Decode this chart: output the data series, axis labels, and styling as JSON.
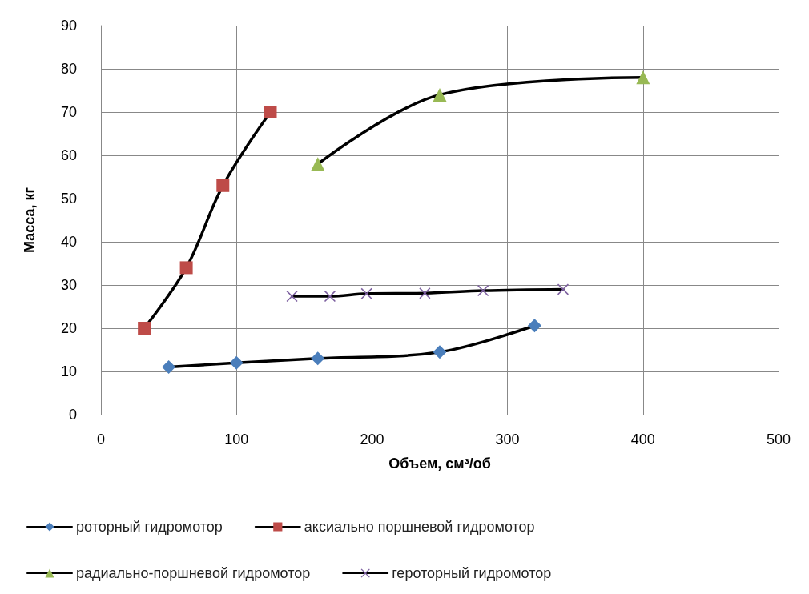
{
  "chart_data": {
    "type": "line",
    "xlabel": "Объем, см³/об",
    "ylabel": "Масса, кг",
    "xlim": [
      0,
      500
    ],
    "xticks": [
      0,
      100,
      200,
      300,
      400,
      500
    ],
    "ylim": [
      0,
      90
    ],
    "yticks": [
      0,
      10,
      20,
      30,
      40,
      50,
      60,
      70,
      80,
      90
    ],
    "grid": true,
    "legend": "bottom",
    "line_style": "solid",
    "series": [
      {
        "name": "роторный гидромотор",
        "color": "#4a7ebb",
        "marker": "diamond",
        "x": [
          50,
          100,
          160,
          250,
          320
        ],
        "values": [
          11,
          12,
          13,
          14.5,
          20.6
        ]
      },
      {
        "name": "аксиально поршневой гидромотор",
        "color": "#be4b48",
        "marker": "square",
        "x": [
          32,
          63,
          90,
          125
        ],
        "values": [
          20,
          34,
          53,
          70
        ]
      },
      {
        "name": "радиально-поршневой гидромотор",
        "color": "#98b954",
        "marker": "triangle",
        "x": [
          160,
          250,
          400
        ],
        "values": [
          58,
          74,
          78
        ]
      },
      {
        "name": "героторный гидромотор",
        "color": "#7d60a0",
        "marker": "cross",
        "x": [
          141,
          169,
          196,
          239,
          282,
          341
        ],
        "values": [
          27.4,
          27.4,
          28,
          28.1,
          28.7,
          29
        ]
      }
    ]
  }
}
